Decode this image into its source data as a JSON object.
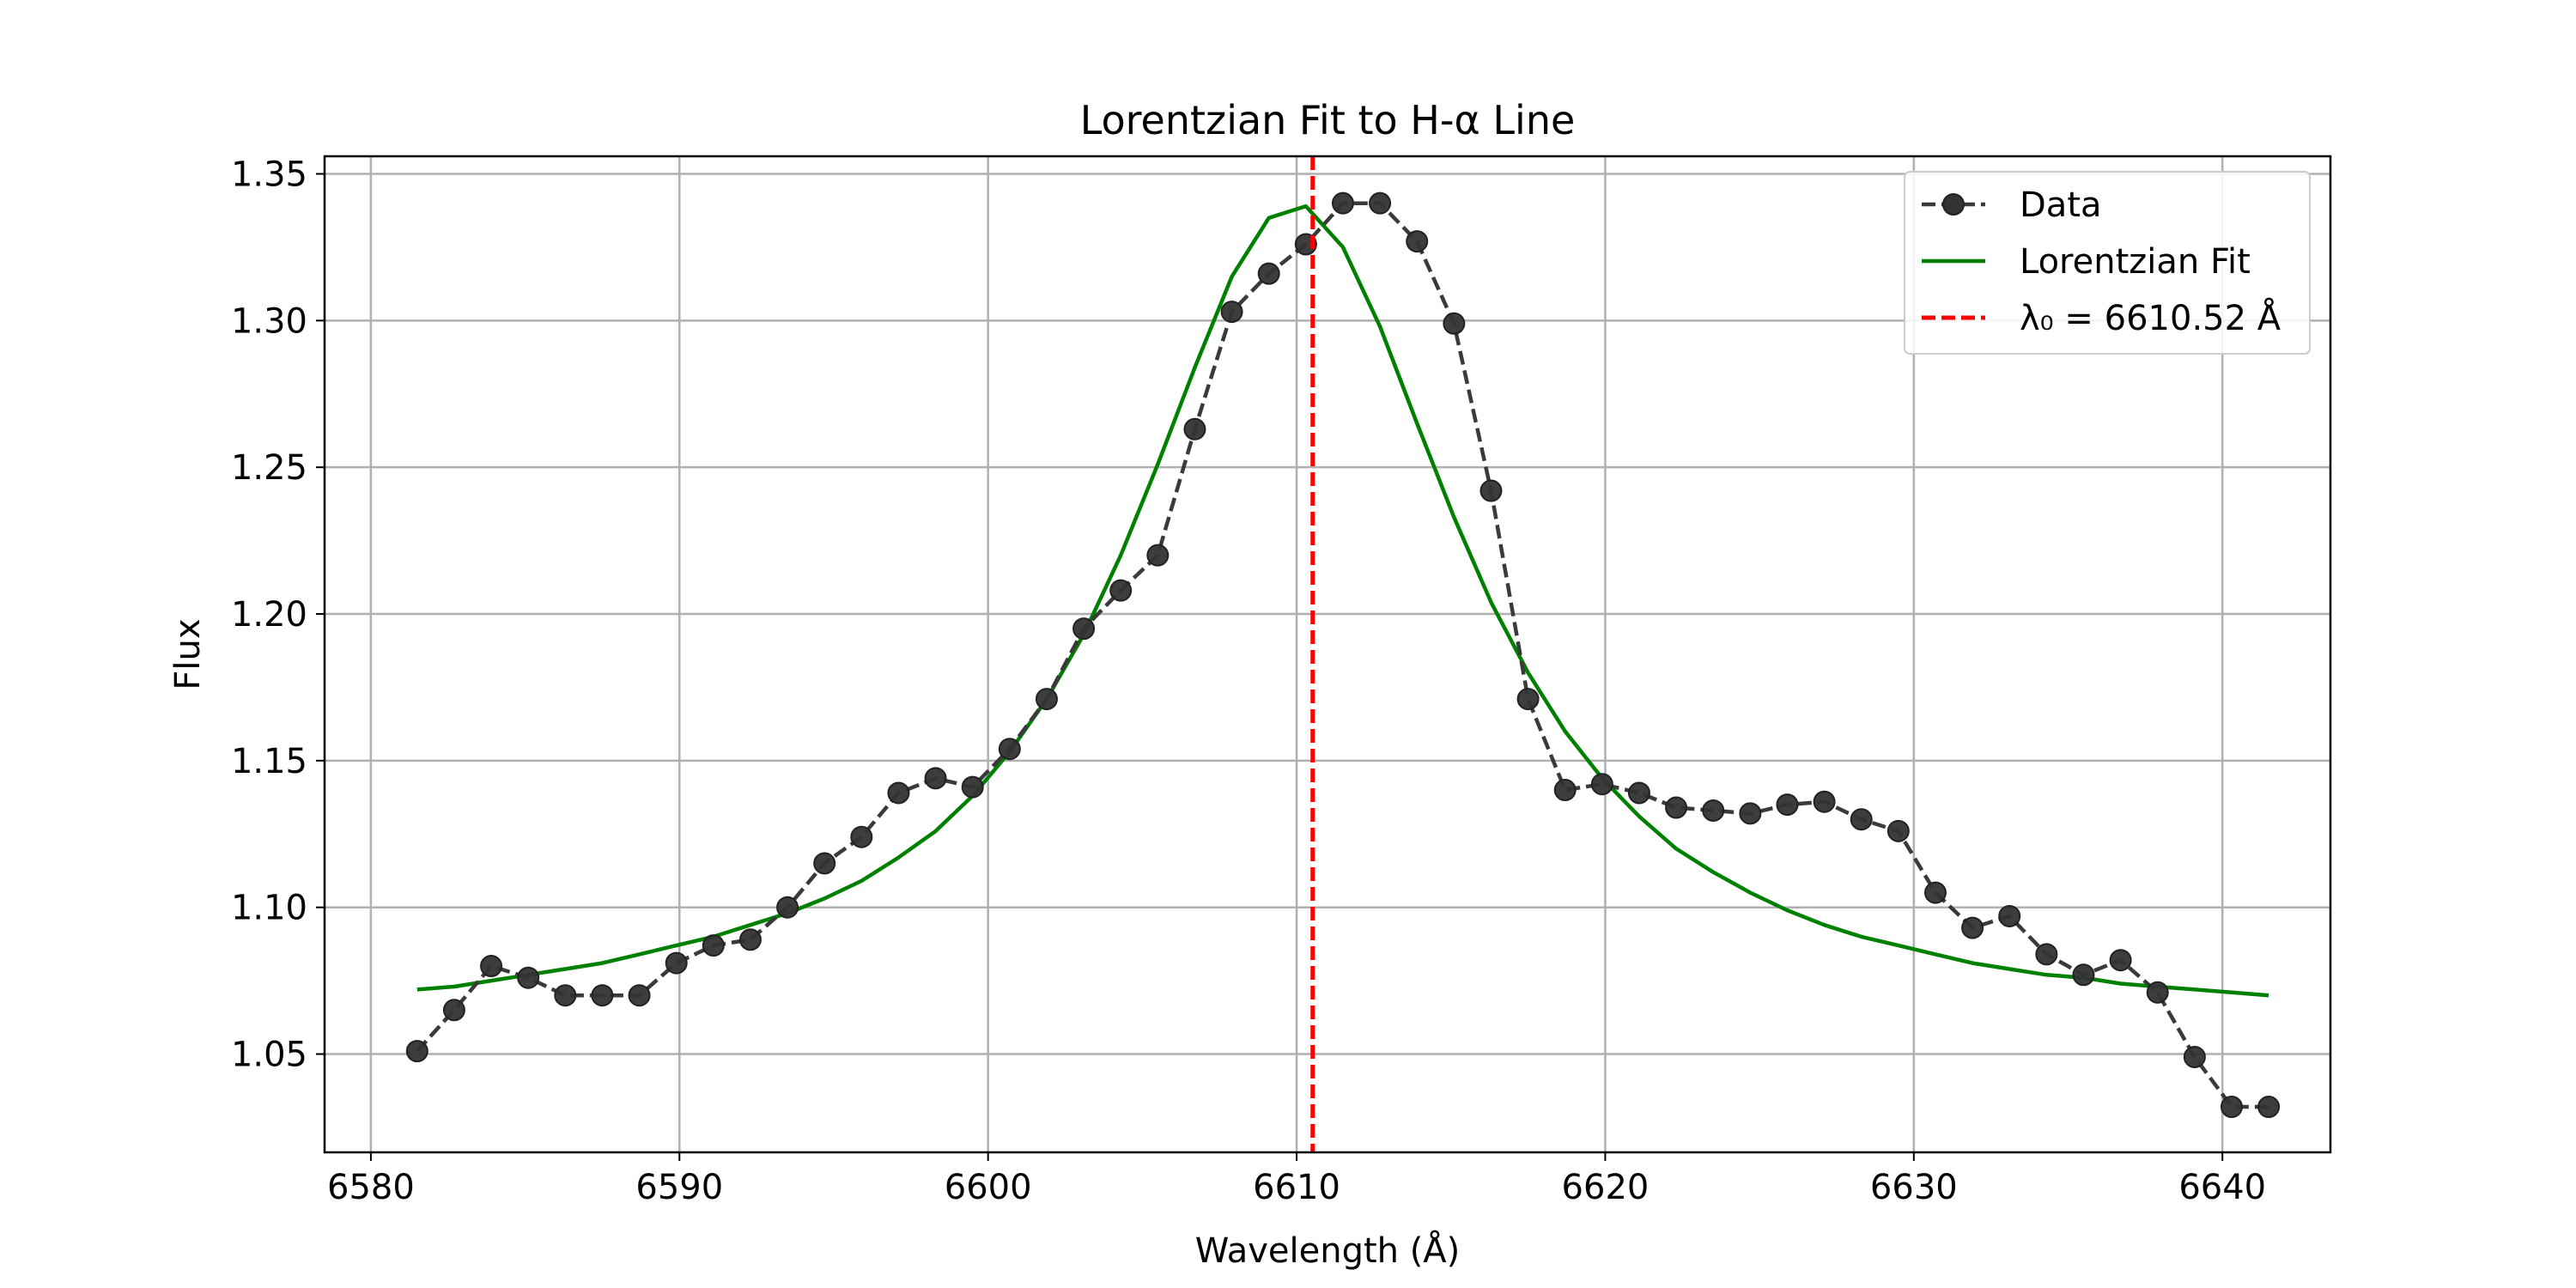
{
  "chart_data": {
    "type": "line",
    "title": "Lorentzian Fit to H-α Line",
    "xlabel": "Wavelength (Å)",
    "ylabel": "Flux",
    "xlim": [
      6578.5,
      6643.5
    ],
    "ylim": [
      1.0165,
      1.356
    ],
    "xticks": [
      6580,
      6590,
      6600,
      6610,
      6620,
      6630,
      6640
    ],
    "xtick_labels": [
      "6580",
      "6590",
      "6600",
      "6610",
      "6620",
      "6630",
      "6640"
    ],
    "yticks": [
      1.05,
      1.1,
      1.15,
      1.2,
      1.25,
      1.3,
      1.35
    ],
    "ytick_labels": [
      "1.05",
      "1.10",
      "1.15",
      "1.20",
      "1.25",
      "1.30",
      "1.35"
    ],
    "grid": true,
    "legend_position": "top-right",
    "series": [
      {
        "name": "Data",
        "kind": "line-markers",
        "style": "dashed",
        "color": "#3a3a3a",
        "x": [
          6581.5,
          6582.7,
          6583.9,
          6585.1,
          6586.3,
          6587.5,
          6588.7,
          6589.9,
          6591.1,
          6592.3,
          6593.5,
          6594.7,
          6595.9,
          6597.1,
          6598.3,
          6599.5,
          6600.7,
          6601.9,
          6603.1,
          6604.3,
          6605.5,
          6606.7,
          6607.9,
          6609.1,
          6610.3,
          6611.5,
          6612.7,
          6613.9,
          6615.1,
          6616.3,
          6617.5,
          6618.7,
          6619.9,
          6621.1,
          6622.3,
          6623.5,
          6624.7,
          6625.9,
          6627.1,
          6628.3,
          6629.5,
          6630.7,
          6631.9,
          6633.1,
          6634.3,
          6635.5,
          6636.7,
          6637.9,
          6639.1,
          6640.3,
          6641.5
        ],
        "y": [
          1.051,
          1.065,
          1.08,
          1.076,
          1.07,
          1.07,
          1.07,
          1.081,
          1.087,
          1.089,
          1.1,
          1.115,
          1.124,
          1.139,
          1.144,
          1.141,
          1.154,
          1.171,
          1.195,
          1.208,
          1.22,
          1.263,
          1.303,
          1.316,
          1.326,
          1.34,
          1.34,
          1.327,
          1.299,
          1.242,
          1.171,
          1.14,
          1.142,
          1.139,
          1.134,
          1.133,
          1.132,
          1.135,
          1.136,
          1.13,
          1.126,
          1.105,
          1.093,
          1.097,
          1.084,
          1.077,
          1.082,
          1.071,
          1.049,
          1.032,
          1.032
        ]
      },
      {
        "name": "Lorentzian Fit",
        "kind": "line",
        "style": "solid",
        "color": "#008000",
        "x": [
          6581.5,
          6582.7,
          6583.9,
          6585.1,
          6586.3,
          6587.5,
          6588.7,
          6589.9,
          6591.1,
          6592.3,
          6593.5,
          6594.7,
          6595.9,
          6597.1,
          6598.3,
          6599.5,
          6600.7,
          6601.9,
          6603.1,
          6604.3,
          6605.5,
          6606.7,
          6607.9,
          6609.1,
          6610.3,
          6611.5,
          6612.7,
          6613.9,
          6615.1,
          6616.3,
          6617.5,
          6618.7,
          6619.9,
          6621.1,
          6622.3,
          6623.5,
          6624.7,
          6625.9,
          6627.1,
          6628.3,
          6629.5,
          6630.7,
          6631.9,
          6633.1,
          6634.3,
          6635.5,
          6636.7,
          6637.9,
          6639.1,
          6640.3,
          6641.5
        ],
        "y": [
          1.072,
          1.073,
          1.075,
          1.077,
          1.079,
          1.081,
          1.084,
          1.087,
          1.09,
          1.094,
          1.098,
          1.103,
          1.109,
          1.117,
          1.126,
          1.138,
          1.153,
          1.171,
          1.193,
          1.22,
          1.251,
          1.284,
          1.315,
          1.335,
          1.339,
          1.325,
          1.298,
          1.265,
          1.233,
          1.204,
          1.18,
          1.16,
          1.144,
          1.131,
          1.12,
          1.112,
          1.105,
          1.099,
          1.094,
          1.09,
          1.087,
          1.084,
          1.081,
          1.079,
          1.077,
          1.076,
          1.074,
          1.073,
          1.072,
          1.071,
          1.07
        ]
      },
      {
        "name": "λ₀ = 6610.52 Å",
        "kind": "vline",
        "style": "dashed",
        "color": "#ff0000",
        "x": 6610.52
      }
    ]
  }
}
